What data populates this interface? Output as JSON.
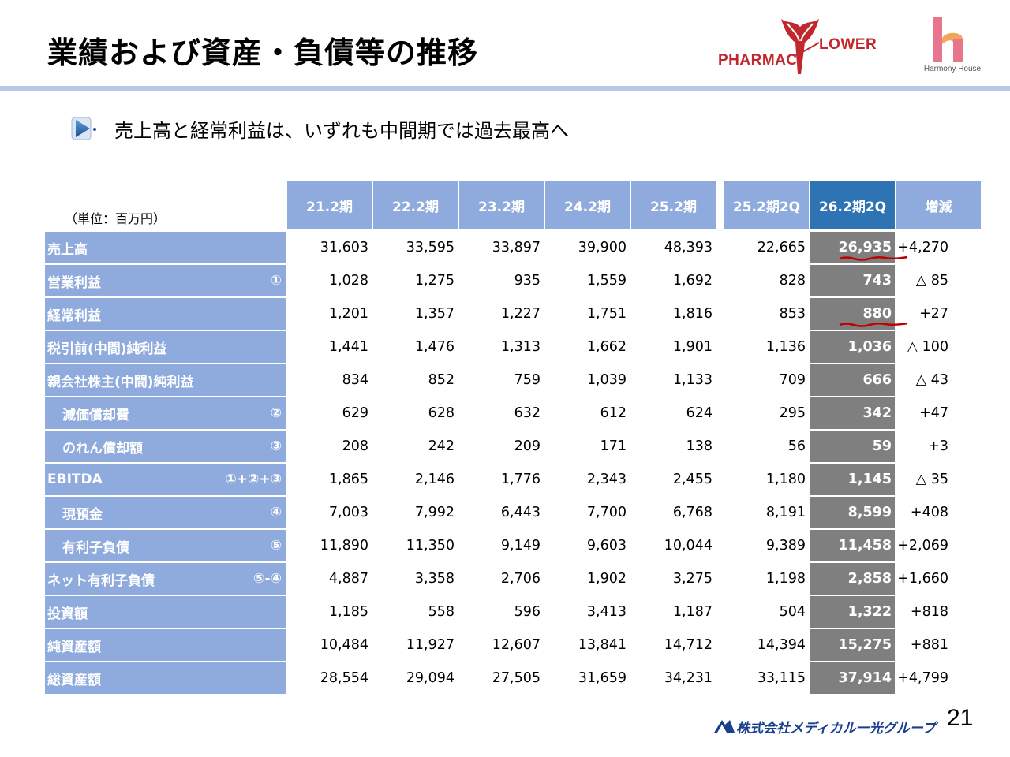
{
  "title": "業績および資産・負債等の推移",
  "logos": {
    "pharmacy_flower_left": "PHARMAC",
    "pharmacy_flower_right": "LOWER",
    "harmony_house": "Harmony House",
    "company": "株式会社メディカル一光グループ"
  },
  "subtitle": "売上高と経常利益は、いずれも中間期では過去最高へ",
  "unit_label": "（単位：百万円）",
  "table": {
    "columns": [
      "21.2期",
      "22.2期",
      "23.2期",
      "24.2期",
      "25.2期",
      "25.2期2Q",
      "26.2期2Q",
      "増減"
    ],
    "rows": [
      {
        "label": "売上高",
        "marker": "",
        "values": [
          "31,603",
          "33,595",
          "33,897",
          "39,900",
          "48,393",
          "22,665",
          "26,935",
          "+4,270"
        ]
      },
      {
        "label": "営業利益",
        "marker": "①",
        "values": [
          "1,028",
          "1,275",
          "935",
          "1,559",
          "1,692",
          "828",
          "743",
          "△ 85"
        ]
      },
      {
        "label": "経常利益",
        "marker": "",
        "values": [
          "1,201",
          "1,357",
          "1,227",
          "1,751",
          "1,816",
          "853",
          "880",
          "+27"
        ]
      },
      {
        "label": "税引前(中間)純利益",
        "marker": "",
        "values": [
          "1,441",
          "1,476",
          "1,313",
          "1,662",
          "1,901",
          "1,136",
          "1,036",
          "△ 100"
        ]
      },
      {
        "label": "親会社株主(中間)純利益",
        "marker": "",
        "values": [
          "834",
          "852",
          "759",
          "1,039",
          "1,133",
          "709",
          "666",
          "△ 43"
        ]
      },
      {
        "label": "減価償却費",
        "marker": "②",
        "values": [
          "629",
          "628",
          "632",
          "612",
          "624",
          "295",
          "342",
          "+47"
        ]
      },
      {
        "label": "のれん償却額",
        "marker": "③",
        "values": [
          "208",
          "242",
          "209",
          "171",
          "138",
          "56",
          "59",
          "+3"
        ]
      },
      {
        "label": "EBITDA",
        "marker": "①+②+③",
        "values": [
          "1,865",
          "2,146",
          "1,776",
          "2,343",
          "2,455",
          "1,180",
          "1,145",
          "△ 35"
        ]
      },
      {
        "label": "現預金",
        "marker": "④",
        "values": [
          "7,003",
          "7,992",
          "6,443",
          "7,700",
          "6,768",
          "8,191",
          "8,599",
          "+408"
        ]
      },
      {
        "label": "有利子負債",
        "marker": "⑤",
        "values": [
          "11,890",
          "11,350",
          "9,149",
          "9,603",
          "10,044",
          "9,389",
          "11,458",
          "+2,069"
        ]
      },
      {
        "label": "ネット有利子負債",
        "marker": "⑤-④",
        "values": [
          "4,887",
          "3,358",
          "2,706",
          "1,902",
          "3,275",
          "1,198",
          "2,858",
          "+1,660"
        ]
      },
      {
        "label": "投資額",
        "marker": "",
        "values": [
          "1,185",
          "558",
          "596",
          "3,413",
          "1,187",
          "504",
          "1,322",
          "+818"
        ]
      },
      {
        "label": "純資産額",
        "marker": "",
        "values": [
          "10,484",
          "11,927",
          "12,607",
          "13,841",
          "14,712",
          "14,394",
          "15,275",
          "+881"
        ]
      },
      {
        "label": "総資産額",
        "marker": "",
        "values": [
          "28,554",
          "29,094",
          "27,505",
          "31,659",
          "34,231",
          "33,115",
          "37,914",
          "+4,799"
        ]
      }
    ]
  },
  "page_number": "21",
  "colors": {
    "header_bg": "#8faadc",
    "header_highlight": "#2e74b5",
    "current_col_bg": "#7f7f7f",
    "divider": "#b7c7e4",
    "accent_red": "#c0282e"
  }
}
